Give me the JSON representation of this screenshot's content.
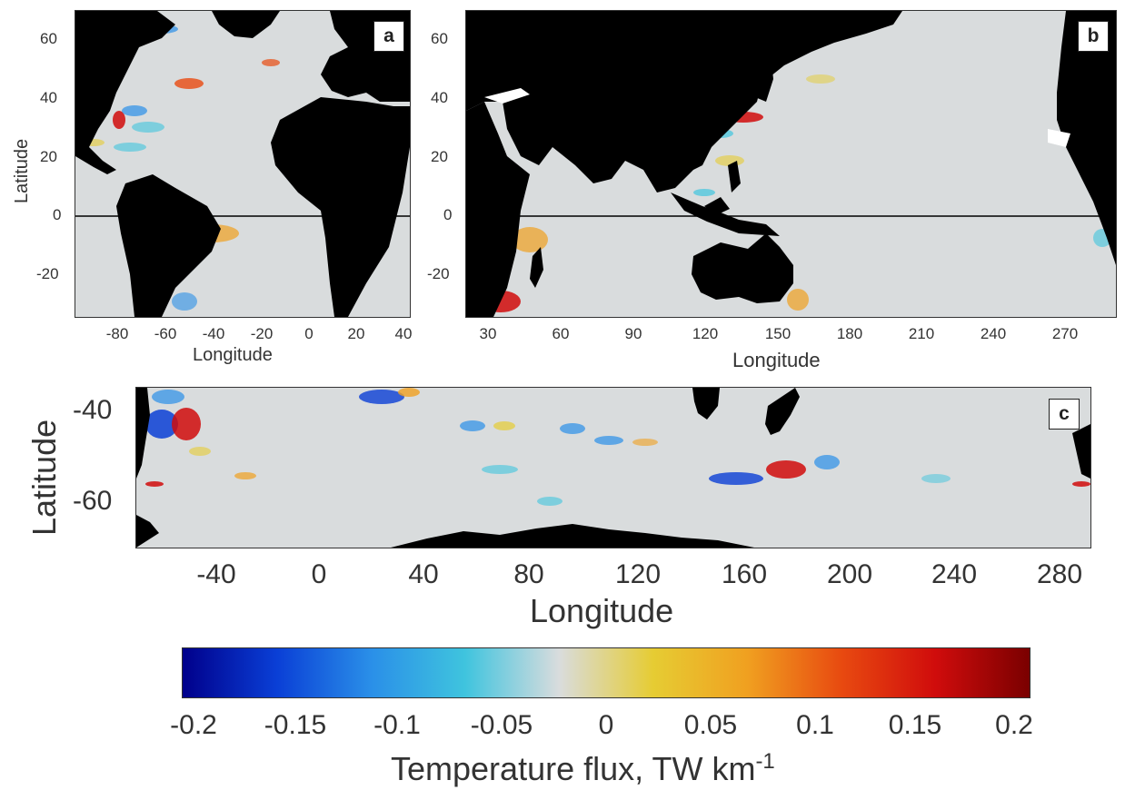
{
  "panels": [
    {
      "id": "a",
      "label": "a",
      "xlabel": "Longitude",
      "ylabel": "Latitude",
      "xticks": [
        "-80",
        "-60",
        "-40",
        "-20",
        "0",
        "20",
        "40"
      ],
      "yticks": [
        "60",
        "40",
        "20",
        "0",
        "-20"
      ]
    },
    {
      "id": "b",
      "label": "b",
      "xlabel": "Longitude",
      "ylabel": "",
      "xticks": [
        "30",
        "60",
        "90",
        "120",
        "150",
        "180",
        "210",
        "240",
        "270"
      ],
      "yticks": [
        "60",
        "40",
        "20",
        "0",
        "-20"
      ]
    },
    {
      "id": "c",
      "label": "c",
      "xlabel": "Longitude",
      "ylabel": "Latitude",
      "xticks": [
        "-40",
        "0",
        "40",
        "80",
        "120",
        "160",
        "200",
        "240",
        "280"
      ],
      "yticks": [
        "-40",
        "-60"
      ]
    }
  ],
  "colorbar": {
    "label": "Temperature flux, TW km",
    "label_superscript": "-1",
    "ticks": [
      "-0.2",
      "-0.15",
      "-0.1",
      "-0.05",
      "0",
      "0.05",
      "0.1",
      "0.15",
      "0.2"
    ],
    "min": -0.2,
    "max": 0.2,
    "colors": [
      "#00008b",
      "#0a3fd6",
      "#2a8fe8",
      "#3fc4de",
      "#d9dcdd",
      "#e6cc33",
      "#f0a020",
      "#e84a10",
      "#d00c0c",
      "#7a0000"
    ]
  },
  "colors": {
    "land": "#000000",
    "ocean_zero": "#d9dcdd"
  }
}
